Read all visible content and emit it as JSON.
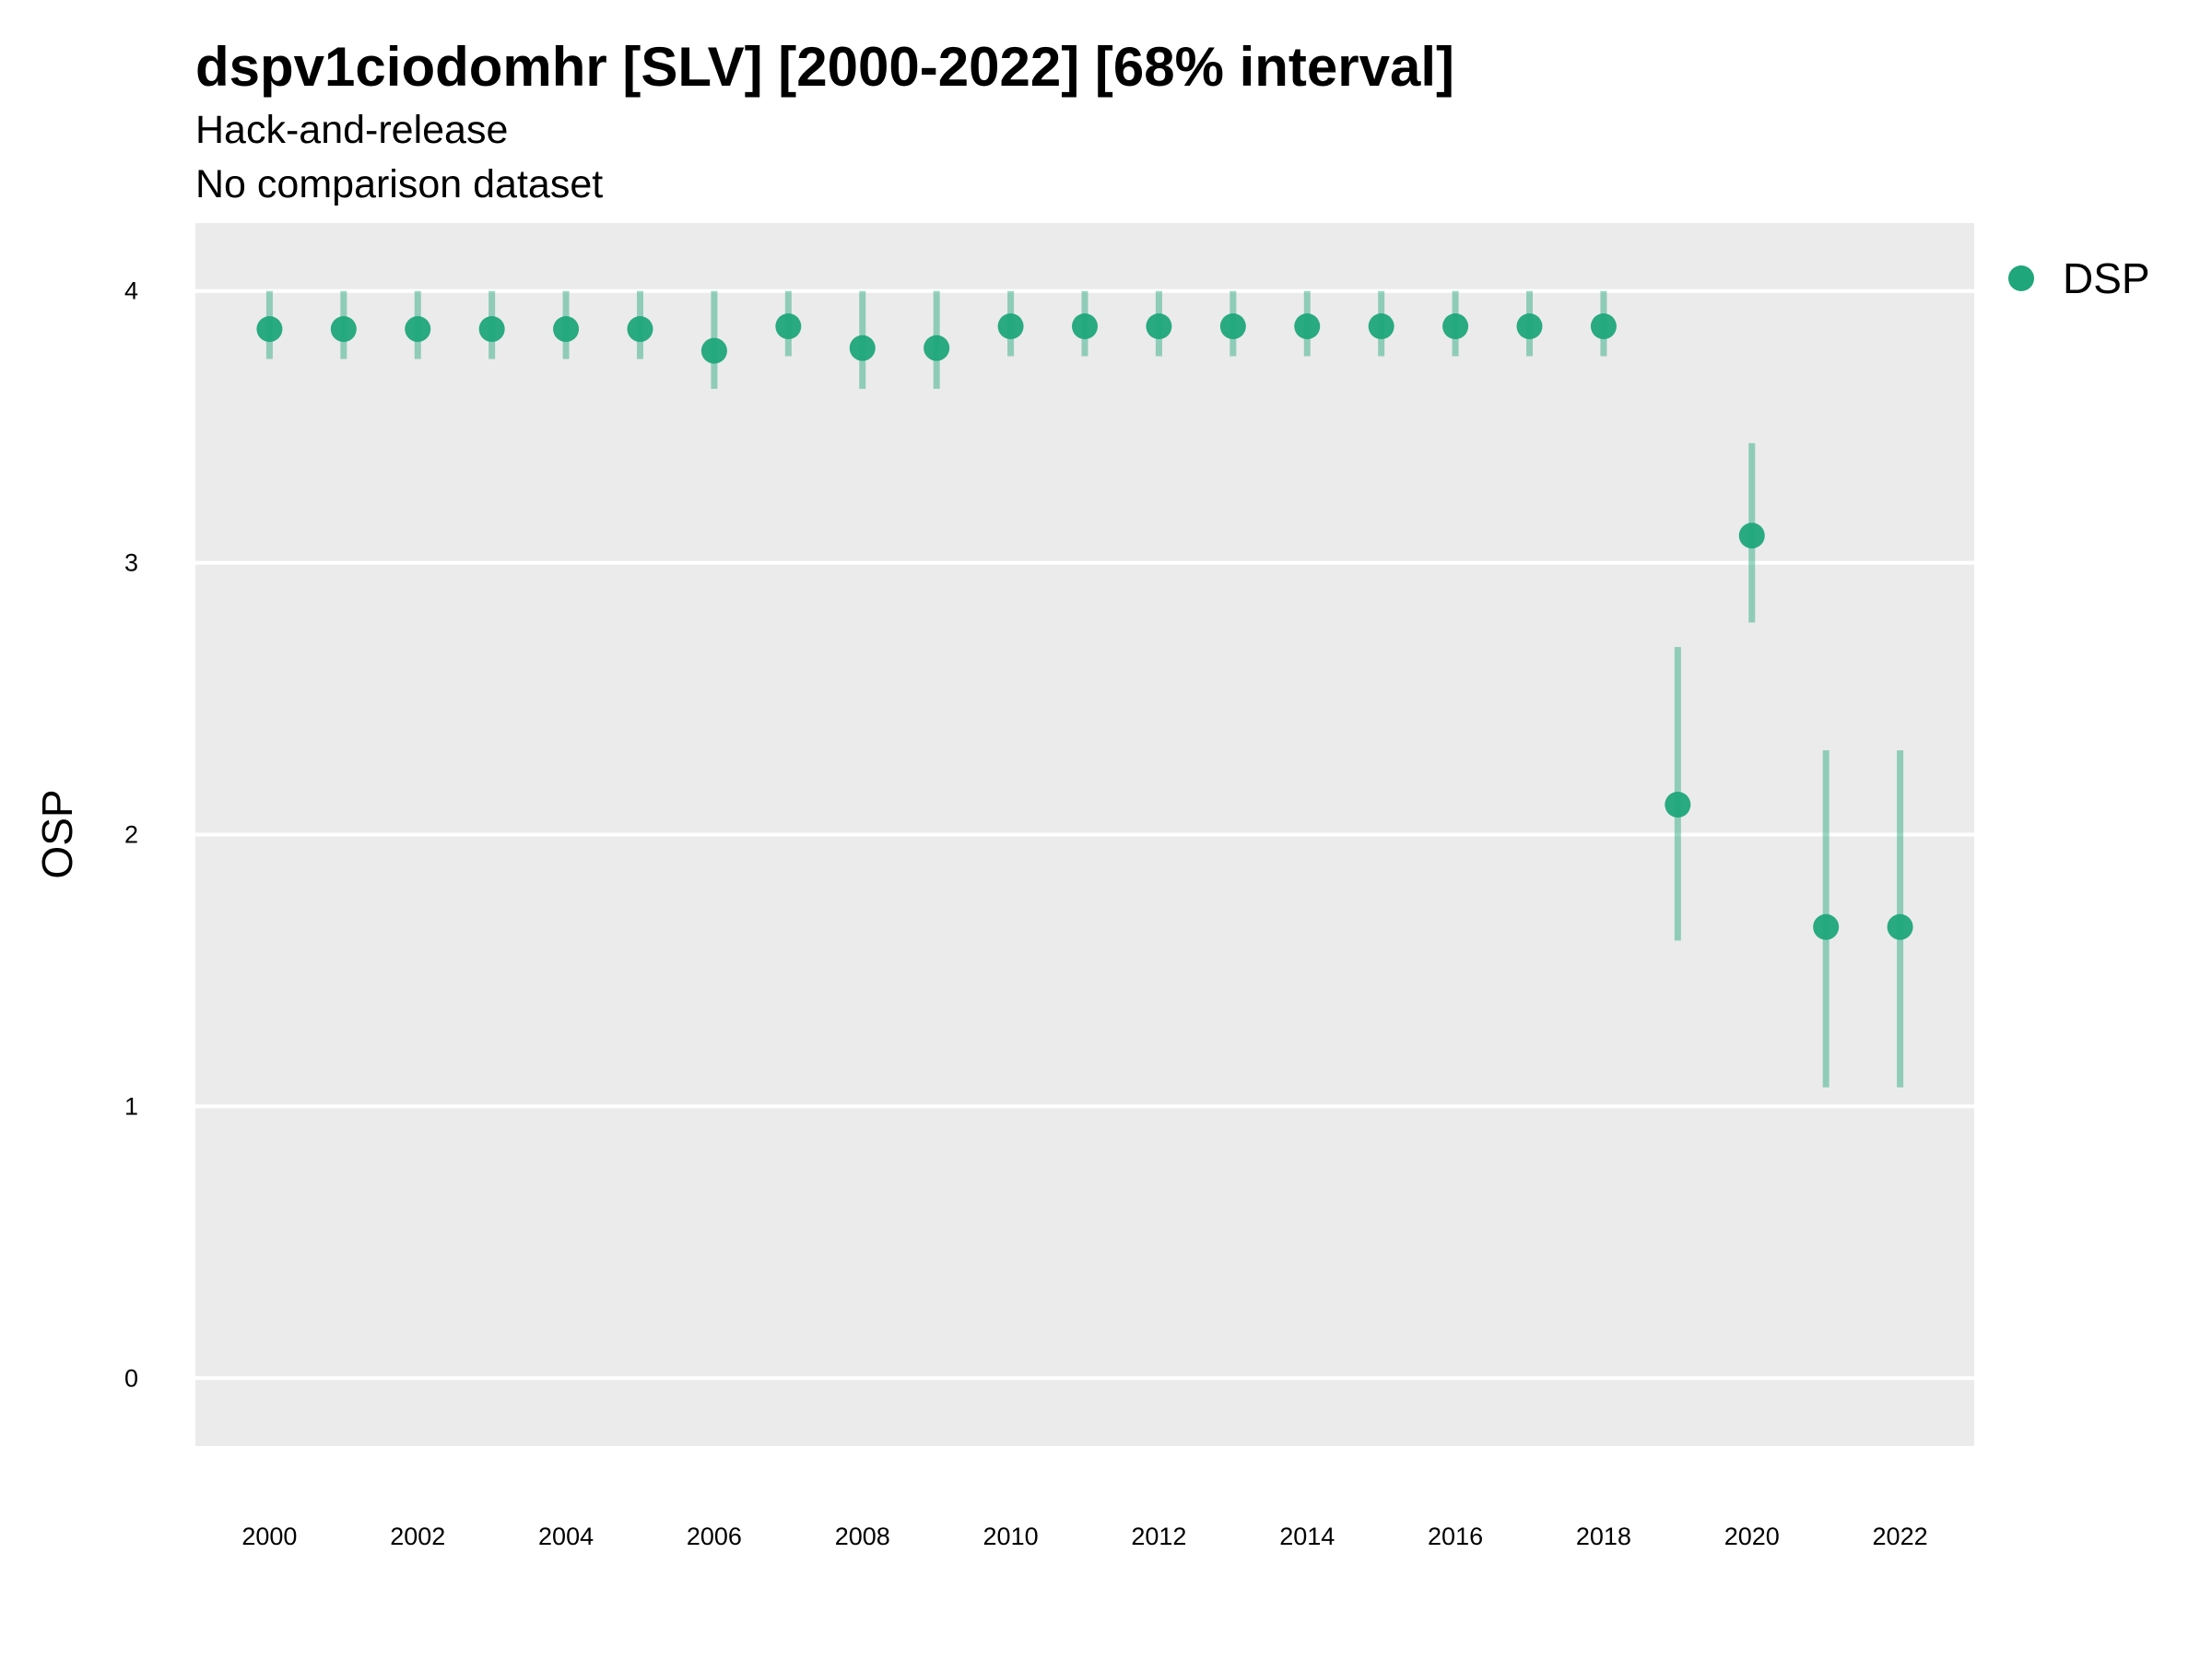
{
  "chart_data": {
    "type": "scatter",
    "title": "dspv1ciodomhr [SLV] [2000-2022] [68% interval]",
    "subtitle": [
      "Hack-and-release",
      "No comparison dataset"
    ],
    "xlabel": "",
    "ylabel": "OSP",
    "x_ticks": [
      "2000",
      "2002",
      "2004",
      "2006",
      "2008",
      "2010",
      "2012",
      "2014",
      "2016",
      "2018",
      "2020",
      "2022"
    ],
    "y_ticks": [
      "0",
      "1",
      "2",
      "3",
      "4"
    ],
    "xlim": [
      1999,
      2023
    ],
    "ylim": [
      -0.25,
      4.25
    ],
    "grid": true,
    "legend_position": "right-top",
    "series": [
      {
        "name": "DSP",
        "color": "#1fa67a",
        "x": [
          2000,
          2001,
          2002,
          2003,
          2004,
          2005,
          2006,
          2007,
          2008,
          2009,
          2010,
          2011,
          2012,
          2013,
          2014,
          2015,
          2016,
          2017,
          2018,
          2019,
          2020,
          2021,
          2022
        ],
        "y": [
          3.86,
          3.86,
          3.86,
          3.86,
          3.86,
          3.86,
          3.78,
          3.87,
          3.79,
          3.79,
          3.87,
          3.87,
          3.87,
          3.87,
          3.87,
          3.87,
          3.87,
          3.87,
          3.87,
          2.11,
          3.1,
          1.66,
          1.66
        ],
        "lower": [
          3.75,
          3.75,
          3.75,
          3.75,
          3.75,
          3.75,
          3.64,
          3.76,
          3.64,
          3.64,
          3.76,
          3.76,
          3.76,
          3.76,
          3.76,
          3.76,
          3.76,
          3.76,
          3.76,
          1.61,
          2.78,
          1.07,
          1.07
        ],
        "upper": [
          4.0,
          4.0,
          4.0,
          4.0,
          4.0,
          4.0,
          4.0,
          4.0,
          4.0,
          4.0,
          4.0,
          4.0,
          4.0,
          4.0,
          4.0,
          4.0,
          4.0,
          4.0,
          4.0,
          2.69,
          3.44,
          2.31,
          2.31
        ]
      }
    ]
  }
}
